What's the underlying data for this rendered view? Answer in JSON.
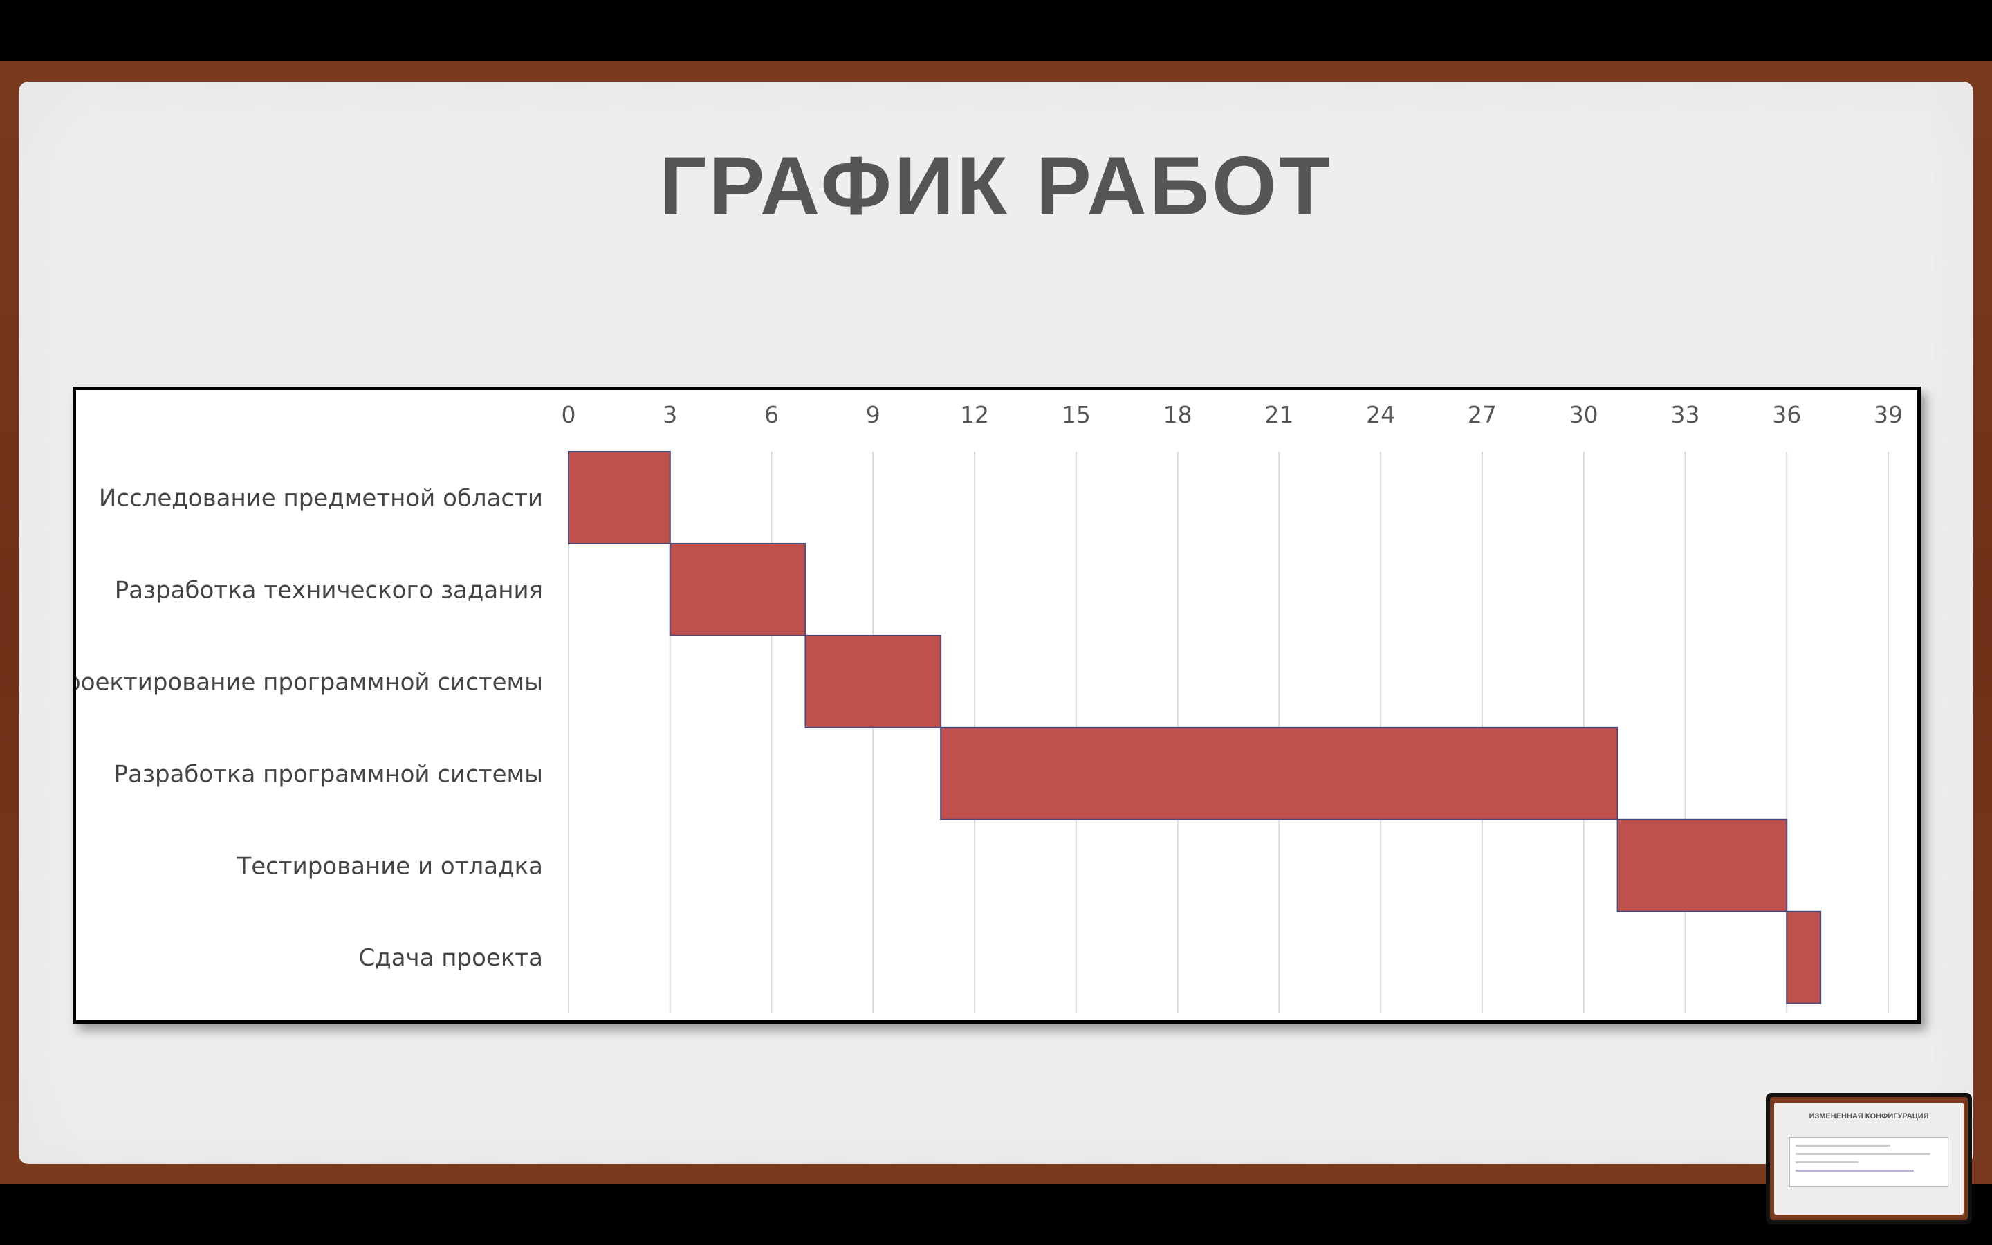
{
  "slide": {
    "title": "ГРАФИК РАБОТ"
  },
  "thumbnail": {
    "title": "ИЗМЕНЕННАЯ КОНФИГУРАЦИЯ"
  },
  "colors": {
    "bar_fill": "#c0504d",
    "bar_stroke": "#4a4a7a",
    "grid": "#d9d9d9",
    "title": "#555555",
    "frame_wood": "#7a3a1f",
    "slide_bg": "#efeeec"
  },
  "chart_data": {
    "type": "bar",
    "orientation": "horizontal-gantt",
    "title": "",
    "xlabel": "",
    "ylabel": "",
    "xlim": [
      0,
      39
    ],
    "x_ticks": [
      0,
      3,
      6,
      9,
      12,
      15,
      18,
      21,
      24,
      27,
      30,
      33,
      36,
      39
    ],
    "x_axis_position": "top",
    "grid": true,
    "legend": "none",
    "categories": [
      "Исследование предметной области",
      "Разработка технического задания",
      "Проектирование программной системы",
      "Разработка программной системы",
      "Тестирование и отладка",
      "Сдача проекта"
    ],
    "series": [
      {
        "start": [
          0,
          3,
          7,
          11,
          31,
          36
        ],
        "end": [
          3,
          7,
          11,
          31,
          36,
          37
        ]
      }
    ]
  }
}
